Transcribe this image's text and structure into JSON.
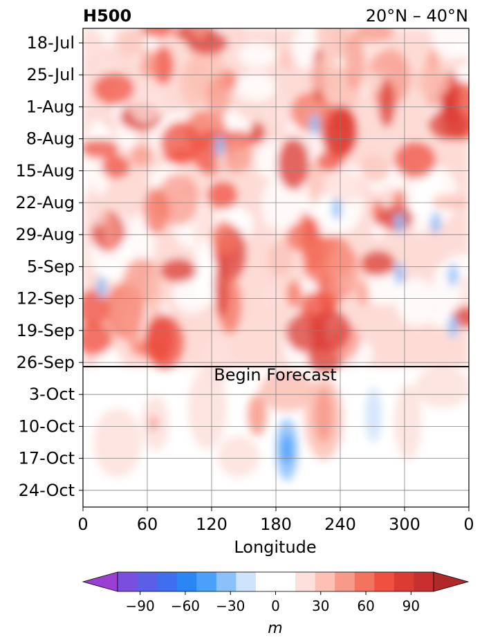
{
  "chart_data": {
    "type": "heatmap",
    "title_left": "H500",
    "title_right": "20°N – 40°N",
    "xlabel": "Longitude",
    "x_ticks": [
      "0",
      "60",
      "120",
      "180",
      "240",
      "300",
      "0"
    ],
    "y_ticks": [
      "18-Jul",
      "25-Jul",
      "1-Aug",
      "8-Aug",
      "15-Aug",
      "22-Aug",
      "29-Aug",
      "5-Sep",
      "12-Sep",
      "19-Sep",
      "26-Sep",
      "3-Oct",
      "10-Oct",
      "17-Oct",
      "24-Oct"
    ],
    "xlim": [
      0,
      360
    ],
    "grid": true,
    "annotation": {
      "text": "Begin Forecast",
      "date": "26-Sep"
    },
    "colorbar": {
      "unit": "m",
      "levels": [
        -105,
        -90,
        -75,
        -60,
        -45,
        -30,
        -15,
        0,
        15,
        30,
        45,
        60,
        75,
        90,
        105
      ],
      "tick_labels": [
        "−90",
        "−60",
        "−30",
        "0",
        "30",
        "60",
        "90"
      ],
      "tick_values": [
        -90,
        -60,
        -30,
        0,
        30,
        60,
        90
      ],
      "colors": [
        "#9b3fd4",
        "#7a4fe0",
        "#5b5fe8",
        "#3f6fee",
        "#2a86f5",
        "#4aa0fb",
        "#8cc0fb",
        "#cfe3fc",
        "#ffffff",
        "#ffffff",
        "#fde0dc",
        "#fcc0b4",
        "#f89a8a",
        "#f4735f",
        "#ef503f",
        "#db3b33",
        "#c83030",
        "#b02828"
      ],
      "extend": "both"
    }
  }
}
